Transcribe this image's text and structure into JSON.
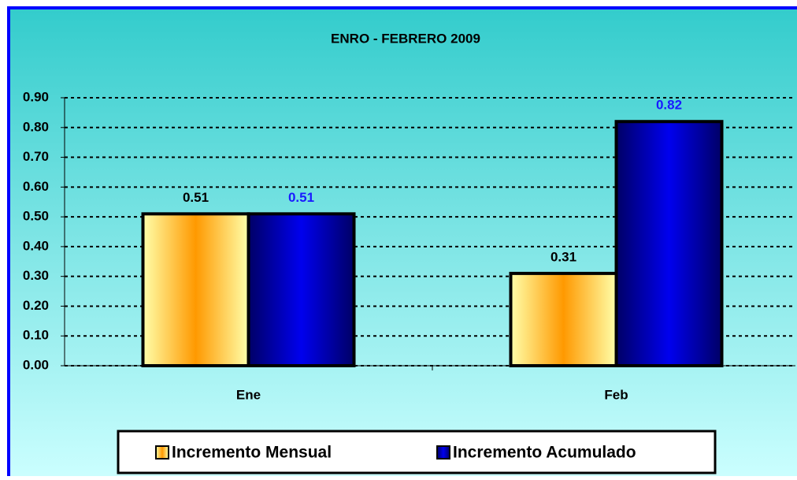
{
  "chart_data": {
    "type": "bar",
    "title": "ENRO - FEBRERO 2009",
    "categories": [
      "Ene",
      "Feb"
    ],
    "series": [
      {
        "name": "Incremento Mensual",
        "color": "#ff9900",
        "values": [
          0.51,
          0.31
        ]
      },
      {
        "name": "Incremento Acumulado",
        "color": "#0000cc",
        "values": [
          0.51,
          0.82
        ]
      }
    ],
    "ylim": [
      0,
      0.9
    ],
    "yticks": [
      {
        "value": 0,
        "label": "0.00"
      },
      {
        "value": 0.1,
        "label": "0.10"
      },
      {
        "value": 0.2,
        "label": "0.20"
      },
      {
        "value": 0.3,
        "label": "0.30"
      },
      {
        "value": 0.4,
        "label": "0.40"
      },
      {
        "value": 0.5,
        "label": "0.50"
      },
      {
        "value": 0.6,
        "label": "0.60"
      },
      {
        "value": 0.7,
        "label": "0.70"
      },
      {
        "value": 0.8,
        "label": "0.80"
      },
      {
        "value": 0.9,
        "label": "0.90"
      }
    ],
    "grid": true,
    "legend": "bottom"
  }
}
